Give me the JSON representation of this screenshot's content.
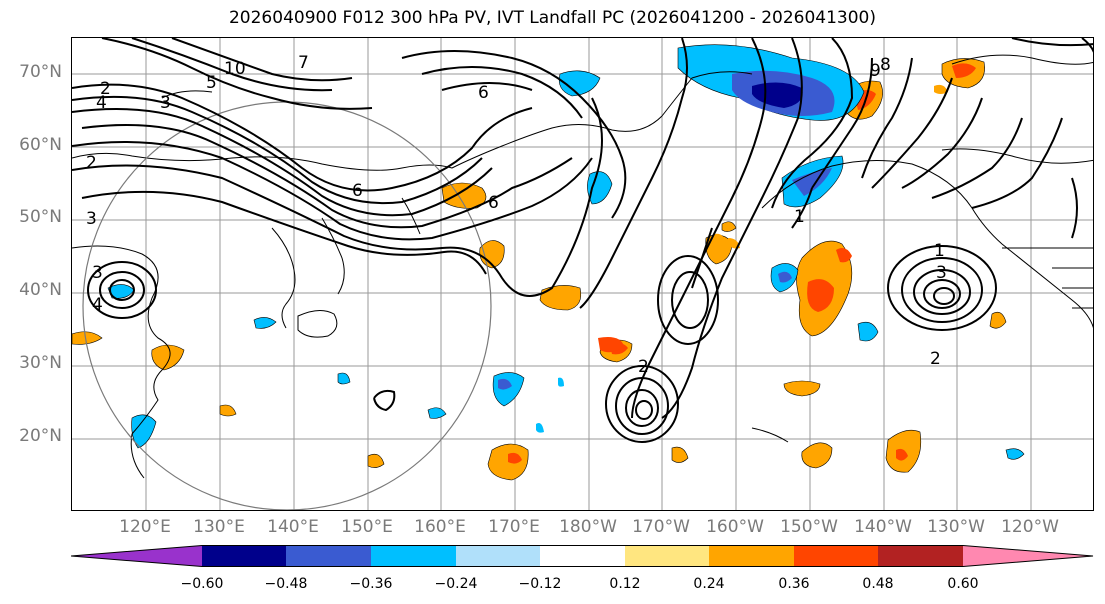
{
  "title": "2026040900 F012 300 hPa PV, IVT Landfall PC (2026041200 - 2026041300)",
  "lat_labels": [
    "70°N",
    "60°N",
    "50°N",
    "40°N",
    "30°N",
    "20°N"
  ],
  "lon_labels": [
    "120°E",
    "130°E",
    "140°E",
    "150°E",
    "160°E",
    "170°E",
    "180°W",
    "170°W",
    "160°W",
    "150°W",
    "140°W",
    "130°W",
    "120°W"
  ],
  "contour_labels": [
    "10",
    "9",
    "8",
    "7",
    "6",
    "5",
    "4",
    "3",
    "2",
    "1"
  ],
  "colorbar": {
    "ticks": [
      "−0.60",
      "−0.48",
      "−0.36",
      "−0.24",
      "−0.12",
      "0.12",
      "0.24",
      "0.36",
      "0.48",
      "0.60"
    ],
    "colors": [
      "#9932cc",
      "#00008b",
      "#3a5bd1",
      "#00bfff",
      "#b0e0fa",
      "#ffffff",
      "#ffe680",
      "#ffa500",
      "#ff4500",
      "#b22222",
      "#ff88b0"
    ]
  },
  "colors": {
    "positive_fill": "#ffa500",
    "strong_positive": "#ff4500",
    "negative_fill": "#00bfff",
    "strong_negative": "#00008b",
    "contour": "#000000",
    "grid": "#999999",
    "coast": "#000000"
  }
}
